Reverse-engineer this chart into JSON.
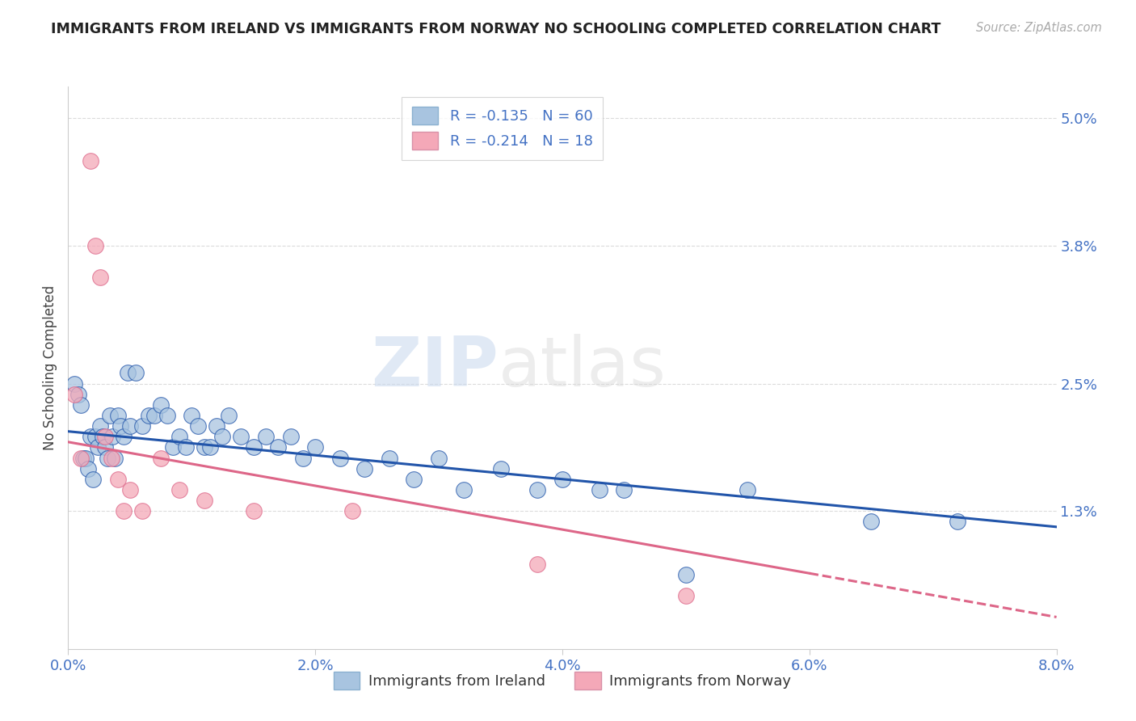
{
  "title": "IMMIGRANTS FROM IRELAND VS IMMIGRANTS FROM NORWAY NO SCHOOLING COMPLETED CORRELATION CHART",
  "source": "Source: ZipAtlas.com",
  "ylabel": "No Schooling Completed",
  "x_tick_labels": [
    "0.0%",
    "2.0%",
    "4.0%",
    "6.0%",
    "8.0%"
  ],
  "x_tick_values": [
    0.0,
    2.0,
    4.0,
    6.0,
    8.0
  ],
  "y_tick_labels": [
    "1.3%",
    "2.5%",
    "3.8%",
    "5.0%"
  ],
  "y_tick_values": [
    1.3,
    2.5,
    3.8,
    5.0
  ],
  "xlim": [
    0.0,
    8.0
  ],
  "ylim": [
    0.0,
    5.3
  ],
  "legend_ireland": "Immigrants from Ireland",
  "legend_norway": "Immigrants from Norway",
  "R_ireland": "-0.135",
  "N_ireland": "60",
  "R_norway": "-0.214",
  "N_norway": "18",
  "color_ireland": "#a8c4e0",
  "color_norway": "#f4a8b8",
  "color_line_ireland": "#2255aa",
  "color_line_norway": "#dd6688",
  "color_axis_labels": "#4472c4",
  "color_title": "#222222",
  "color_source": "#aaaaaa",
  "color_grid": "#cccccc",
  "ireland_x": [
    0.05,
    0.08,
    0.1,
    0.12,
    0.14,
    0.16,
    0.18,
    0.2,
    0.22,
    0.24,
    0.26,
    0.28,
    0.3,
    0.32,
    0.34,
    0.36,
    0.38,
    0.4,
    0.42,
    0.45,
    0.48,
    0.5,
    0.55,
    0.6,
    0.65,
    0.7,
    0.75,
    0.8,
    0.85,
    0.9,
    0.95,
    1.0,
    1.05,
    1.1,
    1.15,
    1.2,
    1.25,
    1.3,
    1.4,
    1.5,
    1.6,
    1.7,
    1.8,
    1.9,
    2.0,
    2.2,
    2.4,
    2.6,
    2.8,
    3.0,
    3.2,
    3.5,
    3.8,
    4.0,
    4.3,
    4.5,
    5.0,
    5.5,
    6.5,
    7.2
  ],
  "ireland_y": [
    2.5,
    2.4,
    2.3,
    1.8,
    1.8,
    1.7,
    2.0,
    1.6,
    2.0,
    1.9,
    2.1,
    2.0,
    1.9,
    1.8,
    2.2,
    2.0,
    1.8,
    2.2,
    2.1,
    2.0,
    2.6,
    2.1,
    2.6,
    2.1,
    2.2,
    2.2,
    2.3,
    2.2,
    1.9,
    2.0,
    1.9,
    2.2,
    2.1,
    1.9,
    1.9,
    2.1,
    2.0,
    2.2,
    2.0,
    1.9,
    2.0,
    1.9,
    2.0,
    1.8,
    1.9,
    1.8,
    1.7,
    1.8,
    1.6,
    1.8,
    1.5,
    1.7,
    1.5,
    1.6,
    1.5,
    1.5,
    0.7,
    1.5,
    1.2,
    1.2
  ],
  "norway_x": [
    0.05,
    0.1,
    0.18,
    0.22,
    0.26,
    0.3,
    0.35,
    0.4,
    0.45,
    0.5,
    0.6,
    0.75,
    0.9,
    1.1,
    1.5,
    2.3,
    3.8,
    5.0
  ],
  "norway_y": [
    2.4,
    1.8,
    4.6,
    3.8,
    3.5,
    2.0,
    1.8,
    1.6,
    1.3,
    1.5,
    1.3,
    1.8,
    1.5,
    1.4,
    1.3,
    1.3,
    0.8,
    0.5
  ],
  "trend_ireland_x0": 0.0,
  "trend_ireland_x1": 8.0,
  "trend_ireland_y0": 2.05,
  "trend_ireland_y1": 1.15,
  "trend_norway_x0": 0.0,
  "trend_norway_x1": 8.0,
  "trend_norway_y0": 1.95,
  "trend_norway_y1": 0.3,
  "watermark": "ZIPatlas",
  "watermark_zip": "ZIP",
  "watermark_atlas": "atlas"
}
